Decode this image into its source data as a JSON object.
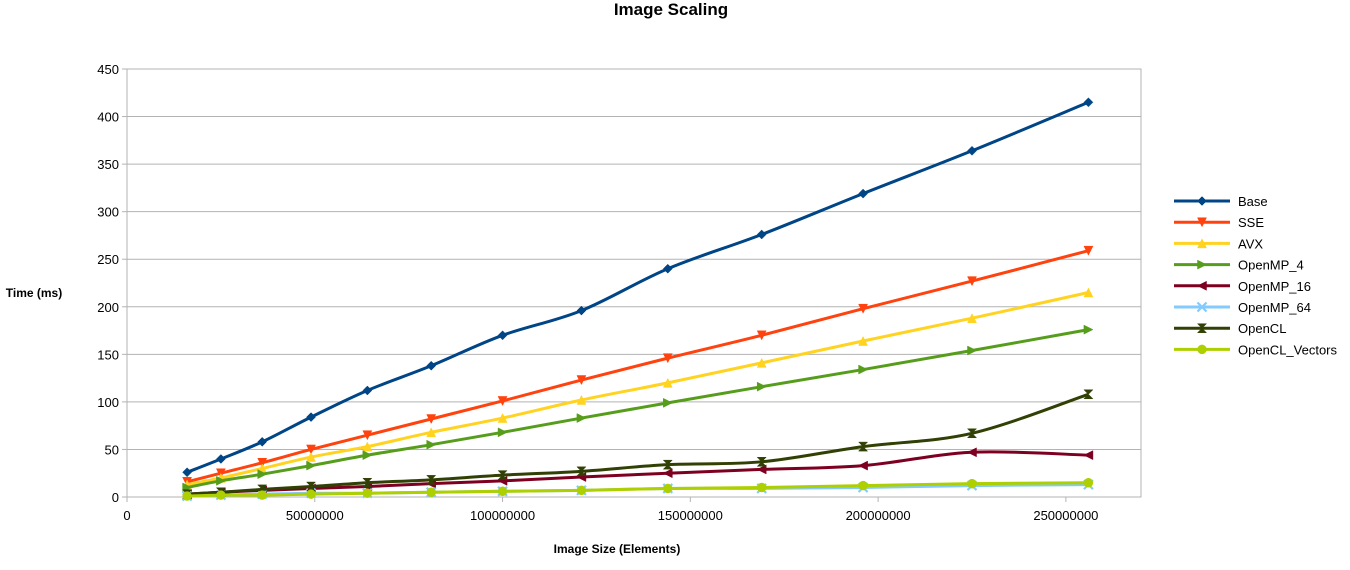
{
  "chart_data": {
    "type": "line",
    "title": "Image Scaling",
    "xlabel": "Image Size (Elements)",
    "ylabel": "Time (ms)",
    "xlim": [
      0,
      270000000
    ],
    "ylim": [
      0,
      450
    ],
    "xticks": [
      0,
      50000000,
      100000000,
      150000000,
      200000000,
      250000000
    ],
    "xtick_labels": [
      "0",
      "50000000",
      "100000000",
      "150000000",
      "200000000",
      "250000000"
    ],
    "yticks": [
      0,
      50,
      100,
      150,
      200,
      250,
      300,
      350,
      400,
      450
    ],
    "ytick_labels": [
      "0",
      "50",
      "100",
      "150",
      "200",
      "250",
      "300",
      "350",
      "400",
      "450"
    ],
    "grid": "horizontal",
    "legend_position": "right",
    "x": [
      16000000,
      25000000,
      36000000,
      49000000,
      64000000,
      81000000,
      100000000,
      121000000,
      144000000,
      169000000,
      196000000,
      225000000,
      256000000
    ],
    "series": [
      {
        "name": "Base",
        "color": "#004586",
        "marker": "diamond",
        "values": [
          26,
          40,
          58,
          84,
          112,
          138,
          170,
          196,
          240,
          276,
          319,
          364,
          415
        ]
      },
      {
        "name": "SSE",
        "color": "#ff420e",
        "marker": "triangle-down",
        "values": [
          16,
          25,
          36,
          50,
          65,
          82,
          101,
          123,
          146,
          170,
          198,
          227,
          259
        ]
      },
      {
        "name": "AVX",
        "color": "#ffd320",
        "marker": "triangle-up",
        "values": [
          13,
          20,
          30,
          42,
          53,
          68,
          83,
          102,
          120,
          141,
          164,
          188,
          215
        ]
      },
      {
        "name": "OpenMP_4",
        "color": "#579d1c",
        "marker": "triangle-right",
        "values": [
          10,
          17,
          24,
          33,
          44,
          55,
          68,
          83,
          99,
          116,
          134,
          154,
          176
        ]
      },
      {
        "name": "OpenMP_16",
        "color": "#7e0021",
        "marker": "triangle-left",
        "values": [
          3,
          5,
          7,
          9,
          11,
          14,
          17,
          21,
          25,
          29,
          33,
          47,
          44
        ]
      },
      {
        "name": "OpenMP_64",
        "color": "#83caff",
        "marker": "x",
        "values": [
          1,
          2,
          3,
          4,
          4,
          5,
          6,
          7,
          9,
          9,
          10,
          12,
          13
        ]
      },
      {
        "name": "OpenCL",
        "color": "#314004",
        "marker": "hourglass",
        "values": [
          3,
          5,
          8,
          11,
          15,
          18,
          23,
          27,
          34,
          37,
          53,
          67,
          108
        ]
      },
      {
        "name": "OpenCL_Vectors",
        "color": "#aecf00",
        "marker": "circle",
        "values": [
          1,
          2,
          2,
          3,
          4,
          5,
          6,
          7,
          9,
          10,
          12,
          14,
          15
        ]
      }
    ]
  }
}
